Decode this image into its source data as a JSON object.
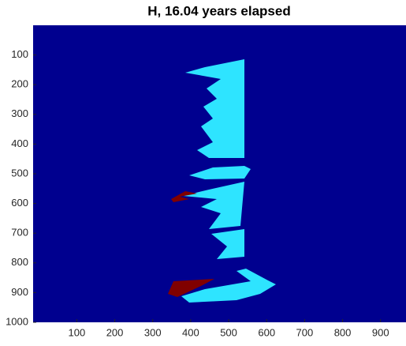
{
  "chart_data": {
    "type": "image",
    "title": "H, 16.04 years elapsed",
    "xlim": [
      -15,
      967
    ],
    "xticks": [
      100,
      200,
      300,
      400,
      500,
      600,
      700,
      800,
      900
    ],
    "ylim": [
      1000,
      0
    ],
    "yticks": [
      100,
      200,
      300,
      400,
      500,
      600,
      700,
      800,
      900,
      1000
    ]
  }
}
